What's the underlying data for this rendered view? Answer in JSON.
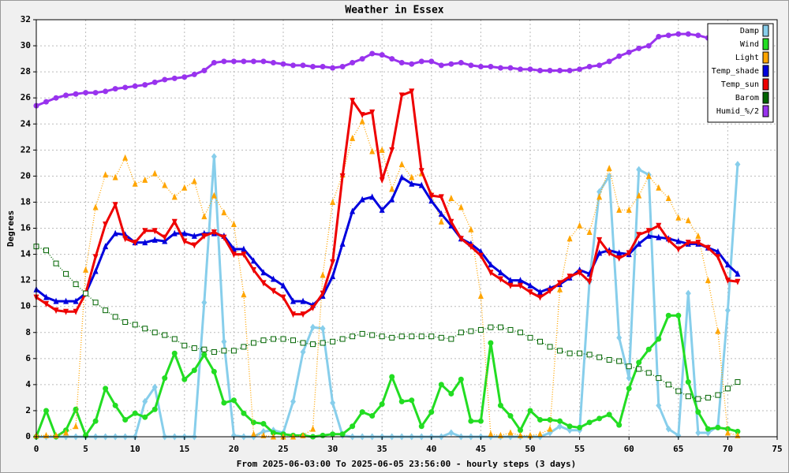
{
  "chart_data": {
    "type": "line",
    "title": "Weather in Essex",
    "y_label": "Degrees",
    "x_label": "From 2025-06-03:00 To 2025-06-05 23:56:00 - hourly steps (3 days)",
    "x": [
      0,
      1,
      2,
      3,
      4,
      5,
      6,
      7,
      8,
      9,
      10,
      11,
      12,
      13,
      14,
      15,
      16,
      17,
      18,
      19,
      20,
      21,
      22,
      23,
      24,
      25,
      26,
      27,
      28,
      29,
      30,
      31,
      32,
      33,
      34,
      35,
      36,
      37,
      38,
      39,
      40,
      41,
      42,
      43,
      44,
      45,
      46,
      47,
      48,
      49,
      50,
      51,
      52,
      53,
      54,
      55,
      56,
      57,
      58,
      59,
      60,
      61,
      62,
      63,
      64,
      65,
      66,
      67,
      68,
      69,
      70,
      71
    ],
    "xlim": [
      0,
      75
    ],
    "xticks": [
      0,
      5,
      10,
      15,
      20,
      25,
      30,
      35,
      40,
      45,
      50,
      55,
      60,
      65,
      70,
      75
    ],
    "ylim": [
      0,
      32
    ],
    "yticks": [
      0,
      2,
      4,
      6,
      8,
      10,
      12,
      14,
      16,
      18,
      20,
      22,
      24,
      26,
      28,
      30,
      32
    ],
    "grid": true,
    "legend": "top-right",
    "series": [
      {
        "name": "Damp",
        "color": "#87ceeb",
        "marker": "diamond",
        "line_style": "solid",
        "values": [
          0,
          0,
          0,
          0,
          0,
          0,
          0,
          0,
          0,
          0,
          0,
          2.7,
          3.8,
          0,
          0,
          0,
          0,
          10.3,
          21.5,
          7.3,
          0.1,
          0,
          0,
          0.4,
          0.5,
          0.3,
          2.7,
          6.5,
          8.4,
          8.3,
          2.6,
          0.1,
          0,
          0,
          0,
          0,
          0,
          0,
          0,
          0,
          0,
          0,
          0.3,
          0,
          0,
          0,
          0,
          0,
          0,
          0,
          0,
          0,
          0.3,
          0.8,
          0.5,
          0.5,
          11.9,
          18.8,
          20.0,
          7.6,
          4.5,
          20.5,
          20.1,
          2.4,
          0.6,
          0.1,
          11.0,
          0.3,
          0.3,
          0.8,
          9.7,
          20.9
        ]
      },
      {
        "name": "Wind",
        "color": "#22dd22",
        "marker": "circle",
        "line_style": "solid",
        "values": [
          0,
          2.0,
          0,
          0.5,
          2.1,
          0.1,
          1.2,
          3.7,
          2.4,
          1.3,
          1.8,
          1.5,
          2.1,
          4.5,
          6.4,
          4.4,
          5.1,
          6.3,
          5.0,
          2.6,
          2.8,
          1.8,
          1.1,
          1.0,
          0.3,
          0.2,
          0.1,
          0.1,
          0,
          0.1,
          0.2,
          0.2,
          0.8,
          1.9,
          1.6,
          2.5,
          4.6,
          2.7,
          2.8,
          0.8,
          1.9,
          4.0,
          3.3,
          4.4,
          1.2,
          1.2,
          7.2,
          2.4,
          1.6,
          0.5,
          2.0,
          1.3,
          1.3,
          1.2,
          0.8,
          0.7,
          1.1,
          1.4,
          1.7,
          0.9,
          3.7,
          5.7,
          6.7,
          7.5,
          9.3,
          9.3,
          4.2,
          1.9,
          0.6,
          0.7,
          0.6,
          0.4
        ]
      },
      {
        "name": "Light",
        "color": "#ffa500",
        "marker": "triangle-up",
        "line_style": "dotted",
        "values": [
          0.1,
          0.1,
          0.1,
          0.3,
          0.8,
          12.8,
          17.6,
          20.1,
          19.9,
          21.4,
          19.4,
          19.7,
          20.2,
          19.3,
          18.4,
          19.1,
          19.6,
          16.9,
          18.5,
          17.2,
          16.3,
          10.9,
          0.2,
          0.1,
          0,
          0,
          0,
          0.1,
          0.6,
          12.4,
          18.0,
          20.1,
          22.9,
          24.2,
          21.9,
          22.0,
          19.0,
          20.9,
          19.9,
          20.2,
          18.6,
          16.5,
          18.3,
          17.6,
          15.9,
          10.8,
          0.2,
          0.1,
          0.3,
          0.1,
          0.1,
          0.2,
          0.6,
          11.3,
          15.2,
          16.2,
          15.7,
          18.4,
          20.6,
          17.4,
          17.4,
          18.5,
          20.0,
          19.1,
          18.3,
          16.8,
          16.6,
          15.4,
          12.0,
          8.1,
          0.3,
          0.1
        ]
      },
      {
        "name": "Temp_shade",
        "color": "#0000dd",
        "marker": "triangle-up",
        "line_style": "solid",
        "values": [
          11.3,
          10.7,
          10.4,
          10.4,
          10.4,
          11.0,
          12.7,
          14.6,
          15.6,
          15.5,
          14.9,
          14.9,
          15.1,
          15.0,
          15.6,
          15.6,
          15.4,
          15.6,
          15.6,
          15.4,
          14.4,
          14.4,
          13.5,
          12.6,
          12.1,
          11.6,
          10.4,
          10.4,
          10.1,
          10.8,
          12.3,
          14.8,
          17.3,
          18.2,
          18.4,
          17.4,
          18.2,
          19.9,
          19.4,
          19.3,
          18.1,
          17.1,
          16.2,
          15.2,
          14.8,
          14.2,
          13.2,
          12.6,
          12.0,
          12.0,
          11.6,
          11.1,
          11.4,
          11.7,
          12.2,
          12.8,
          12.5,
          14.1,
          14.3,
          14.1,
          14.0,
          14.8,
          15.4,
          15.3,
          15.2,
          15.0,
          14.8,
          14.8,
          14.5,
          14.2,
          13.2,
          12.5
        ]
      },
      {
        "name": "Temp_sun",
        "color": "#ee0000",
        "marker": "triangle-down",
        "line_style": "solid",
        "values": [
          10.7,
          10.2,
          9.7,
          9.6,
          9.6,
          11.0,
          13.8,
          16.3,
          17.8,
          15.2,
          14.9,
          15.8,
          15.8,
          15.3,
          16.5,
          15.0,
          14.7,
          15.4,
          15.7,
          15.3,
          14.0,
          14.0,
          12.8,
          11.8,
          11.2,
          10.7,
          9.4,
          9.4,
          9.9,
          11.0,
          13.4,
          20.0,
          25.8,
          24.7,
          24.9,
          19.7,
          22.0,
          26.2,
          26.5,
          20.4,
          18.5,
          18.4,
          16.5,
          15.2,
          14.6,
          13.9,
          12.6,
          12.1,
          11.6,
          11.6,
          11.1,
          10.7,
          11.2,
          11.8,
          12.3,
          12.6,
          11.9,
          15.1,
          14.1,
          13.7,
          14.1,
          15.5,
          15.8,
          16.2,
          15.1,
          14.4,
          14.9,
          14.9,
          14.5,
          13.8,
          12.0,
          11.9
        ]
      },
      {
        "name": "Barom",
        "color": "#006400",
        "marker": "square-open",
        "line_style": "dotted",
        "values": [
          14.6,
          14.3,
          13.3,
          12.5,
          11.7,
          11.0,
          10.3,
          9.7,
          9.2,
          8.8,
          8.6,
          8.3,
          8.0,
          7.8,
          7.5,
          7.0,
          6.8,
          6.7,
          6.5,
          6.6,
          6.6,
          6.9,
          7.2,
          7.4,
          7.5,
          7.5,
          7.4,
          7.2,
          7.1,
          7.2,
          7.3,
          7.5,
          7.7,
          7.9,
          7.8,
          7.7,
          7.6,
          7.7,
          7.7,
          7.7,
          7.7,
          7.6,
          7.5,
          8.0,
          8.1,
          8.2,
          8.4,
          8.4,
          8.2,
          8.0,
          7.6,
          7.3,
          6.9,
          6.6,
          6.4,
          6.4,
          6.3,
          6.1,
          5.9,
          5.8,
          5.4,
          5.2,
          4.9,
          4.5,
          4.0,
          3.5,
          3.1,
          2.9,
          3.0,
          3.2,
          3.7,
          4.2
        ]
      },
      {
        "name": "Humid_%/2",
        "color": "#9933ee",
        "marker": "circle",
        "line_style": "solid",
        "values": [
          25.4,
          25.7,
          26.0,
          26.2,
          26.3,
          26.4,
          26.4,
          26.5,
          26.7,
          26.8,
          26.9,
          27.0,
          27.2,
          27.4,
          27.5,
          27.6,
          27.8,
          28.1,
          28.7,
          28.8,
          28.8,
          28.8,
          28.8,
          28.8,
          28.7,
          28.6,
          28.5,
          28.5,
          28.4,
          28.4,
          28.3,
          28.4,
          28.7,
          29.0,
          29.4,
          29.3,
          29.0,
          28.7,
          28.6,
          28.8,
          28.8,
          28.5,
          28.6,
          28.7,
          28.5,
          28.4,
          28.4,
          28.3,
          28.3,
          28.2,
          28.2,
          28.1,
          28.1,
          28.1,
          28.1,
          28.2,
          28.4,
          28.5,
          28.8,
          29.2,
          29.5,
          29.8,
          30.0,
          30.7,
          30.8,
          30.9,
          30.9,
          30.8,
          30.6,
          30.5,
          30.4,
          30.4
        ]
      }
    ]
  }
}
